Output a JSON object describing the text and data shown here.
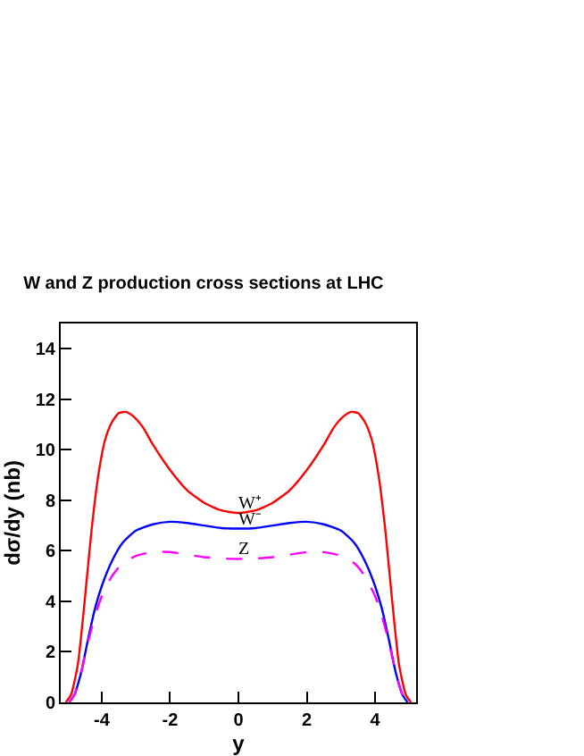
{
  "chart_data": {
    "type": "line",
    "title": "W and Z production cross sections at LHC",
    "xlabel": "y",
    "ylabel": "dσ/dy (nb)",
    "xlim": [
      -5.2,
      5.2
    ],
    "xticks": [
      -4,
      -2,
      0,
      2,
      4
    ],
    "ylim": [
      0,
      15
    ],
    "yticks": [
      0,
      2,
      4,
      6,
      8,
      10,
      12,
      14
    ],
    "grid": false,
    "legend": false,
    "marker": "none",
    "series": [
      {
        "name": "W⁺",
        "color": "#ff0000",
        "line_style": "solid",
        "x": [
          -5.05,
          -4.9,
          -4.7,
          -4.5,
          -4.3,
          -4.1,
          -3.9,
          -3.7,
          -3.5,
          -3.3,
          -3.1,
          -2.8,
          -2.5,
          -2,
          -1.5,
          -1,
          -0.5,
          0,
          0.5,
          1,
          1.5,
          2,
          2.5,
          2.8,
          3.1,
          3.3,
          3.5,
          3.7,
          3.9,
          4.1,
          4.3,
          4.5,
          4.7,
          4.9,
          5.05
        ],
        "values": [
          0,
          0.3,
          1.5,
          4,
          6.8,
          9,
          10.4,
          11.1,
          11.45,
          11.5,
          11.35,
          10.9,
          10.2,
          9.2,
          8.4,
          7.9,
          7.6,
          7.5,
          7.6,
          7.9,
          8.4,
          9.2,
          10.2,
          10.9,
          11.35,
          11.5,
          11.45,
          11.1,
          10.4,
          9,
          6.8,
          4,
          1.5,
          0.3,
          0
        ]
      },
      {
        "name": "W⁻",
        "color": "#0000ff",
        "line_style": "solid",
        "x": [
          -4.95,
          -4.8,
          -4.6,
          -4.4,
          -4.2,
          -4,
          -3.7,
          -3.4,
          -3,
          -2.5,
          -2,
          -1.5,
          -1,
          -0.5,
          0,
          0.5,
          1,
          1.5,
          2,
          2.5,
          3,
          3.4,
          3.7,
          4,
          4.2,
          4.4,
          4.6,
          4.8,
          4.95
        ],
        "values": [
          0,
          0.3,
          1.2,
          2.5,
          3.7,
          4.6,
          5.6,
          6.3,
          6.8,
          7.05,
          7.15,
          7.1,
          7,
          6.9,
          6.88,
          6.9,
          7,
          7.1,
          7.15,
          7.05,
          6.8,
          6.3,
          5.6,
          4.6,
          3.7,
          2.5,
          1.2,
          0.3,
          0
        ]
      },
      {
        "name": "Z",
        "color": "#ff00ff",
        "line_style": "dashed",
        "x": [
          -4.95,
          -4.8,
          -4.6,
          -4.4,
          -4.2,
          -4,
          -3.7,
          -3.4,
          -3,
          -2.5,
          -2,
          -1.5,
          -1,
          -0.5,
          0,
          0.5,
          1,
          1.5,
          2,
          2.5,
          3,
          3.4,
          3.7,
          4,
          4.2,
          4.4,
          4.6,
          4.8,
          4.95
        ],
        "values": [
          0,
          0.3,
          1.2,
          2.4,
          3.4,
          4.2,
          5,
          5.5,
          5.8,
          5.95,
          5.95,
          5.85,
          5.75,
          5.7,
          5.68,
          5.7,
          5.75,
          5.85,
          5.95,
          5.95,
          5.8,
          5.5,
          5,
          4.2,
          3.4,
          2.4,
          1.2,
          0.3,
          0
        ]
      }
    ]
  }
}
